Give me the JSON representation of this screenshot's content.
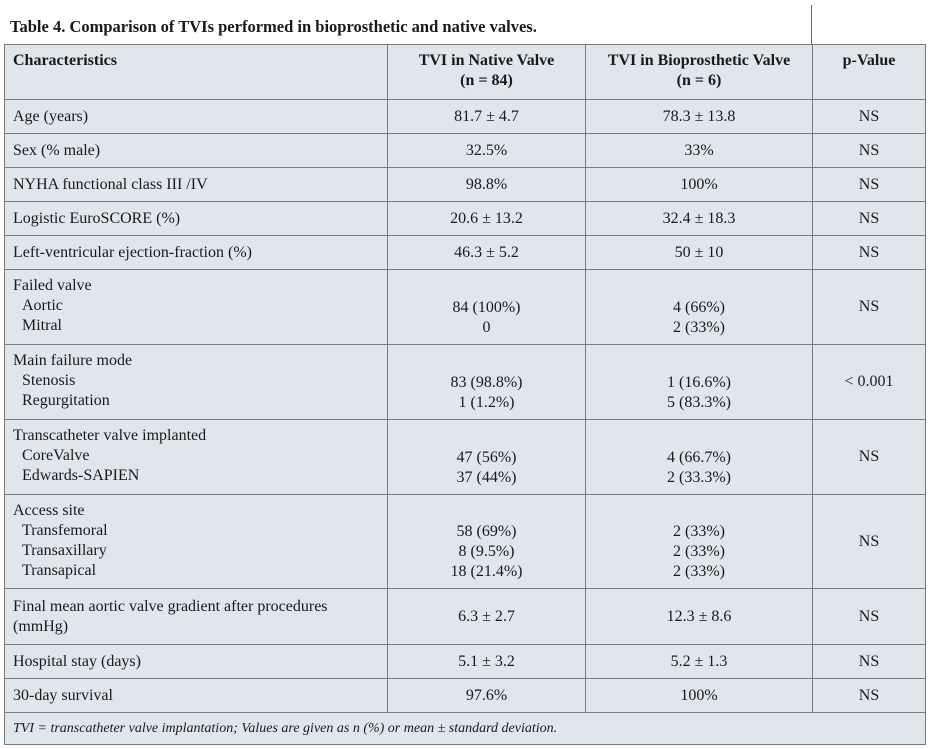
{
  "header": {
    "title": "Table 4. Comparison of TVIs performed in bioprosthetic and native valves."
  },
  "table": {
    "columns": [
      [
        "Characteristics"
      ],
      [
        "TVI in Native Valve",
        "(n = 84)"
      ],
      [
        "TVI in Bioprosthetic Valve",
        "(n = 6)"
      ],
      [
        "p-Value"
      ]
    ],
    "rows": [
      {
        "label": [
          "Age (years)"
        ],
        "native": [
          "81.7 ± 4.7"
        ],
        "bio": [
          "78.3 ± 13.8"
        ],
        "p": "NS"
      },
      {
        "label": [
          "Sex (% male)"
        ],
        "native": [
          "32.5%"
        ],
        "bio": [
          "33%"
        ],
        "p": "NS"
      },
      {
        "label": [
          "NYHA functional class  III /IV"
        ],
        "native": [
          "98.8%"
        ],
        "bio": [
          "100%"
        ],
        "p": "NS"
      },
      {
        "label": [
          "Logistic EuroSCORE (%)"
        ],
        "native": [
          "20.6 ± 13.2"
        ],
        "bio": [
          "32.4 ± 18.3"
        ],
        "p": "NS"
      },
      {
        "label": [
          "Left-ventricular ejection-fraction (%)"
        ],
        "native": [
          "46.3 ± 5.2"
        ],
        "bio": [
          "50 ± 10"
        ],
        "p": "NS"
      },
      {
        "label": [
          "Failed valve"
        ],
        "items": [
          "Aortic",
          "Mitral"
        ],
        "native": [
          "84 (100%)",
          "0"
        ],
        "bio": [
          "4 (66%)",
          "2 (33%)"
        ],
        "p": "NS"
      },
      {
        "label": [
          "Main failure mode"
        ],
        "items": [
          "Stenosis",
          "Regurgitation"
        ],
        "native": [
          "83 (98.8%)",
          "1 (1.2%)"
        ],
        "bio": [
          "1 (16.6%)",
          "5 (83.3%)"
        ],
        "p": "< 0.001"
      },
      {
        "label": [
          "Transcatheter valve implanted"
        ],
        "items": [
          "CoreValve",
          "Edwards-SAPIEN"
        ],
        "native": [
          "47 (56%)",
          "37 (44%)"
        ],
        "bio": [
          "4 (66.7%)",
          "2 (33.3%)"
        ],
        "p": "NS"
      },
      {
        "label": [
          "Access site"
        ],
        "items": [
          "Transfemoral",
          "Transaxillary",
          "Transapical"
        ],
        "native": [
          "58 (69%)",
          "8 (9.5%)",
          "18 (21.4%)"
        ],
        "bio": [
          "2 (33%)",
          "2 (33%)",
          "2 (33%)"
        ],
        "p": "NS"
      },
      {
        "label": [
          "Final mean aortic valve gradient after procedures",
          "(mmHg)"
        ],
        "native": [
          "6.3 ± 2.7"
        ],
        "bio": [
          "12.3 ± 8.6"
        ],
        "p": "NS"
      },
      {
        "label": [
          "Hospital stay (days)"
        ],
        "native": [
          "5.1 ± 3.2"
        ],
        "bio": [
          "5.2 ± 1.3"
        ],
        "p": "NS"
      },
      {
        "label": [
          "30-day survival"
        ],
        "native": [
          "97.6%"
        ],
        "bio": [
          "100%"
        ],
        "p": "NS"
      }
    ],
    "footnote": "TVI = transcatheter valve implantation; Values are given as n (%) or mean ± standard deviation."
  }
}
